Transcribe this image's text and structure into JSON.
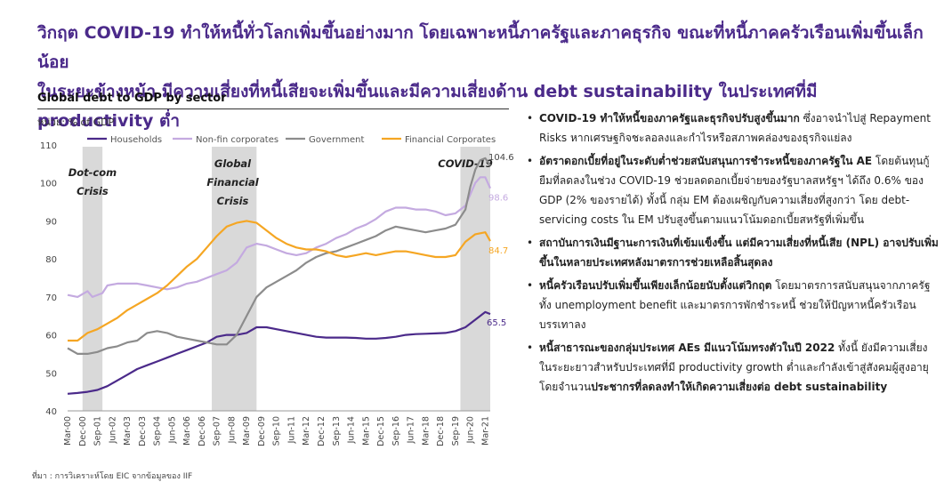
{
  "headline": {
    "line1": "วิกฤต COVID-19 ทำให้หนี้ทั่วโลกเพิ่มขึ้นอย่างมาก โดยเฉพาะหนี้ภาครัฐและภาคธุรกิจ ขณะที่หนี้ภาคครัวเรือนเพิ่มขึ้นเล็กน้อย",
    "line2": "ในระยะข้างหน้า มีความเสี่ยงที่หนี้เสียจะเพิ่มขึ้นและมีความเสี่ยงด้าน debt sustainability ในประเทศที่มี productivity ต่ำ"
  },
  "chart_title": "Global debt to GDP by sector",
  "unit_label": "หน่วย: % of GDP",
  "chart_data": {
    "type": "line",
    "ylim": [
      40,
      110
    ],
    "yticks": [
      40,
      50,
      60,
      70,
      80,
      90,
      100,
      110
    ],
    "xlim": [
      2000.0,
      2021.25
    ],
    "xtick_labels": [
      "Mar-00",
      "Dec-00",
      "Sep-01",
      "Jun-02",
      "Mar-03",
      "Dec-03",
      "Sep-04",
      "Jun-05",
      "Mar-06",
      "Dec-06",
      "Sep-07",
      "Jun-08",
      "Mar-09",
      "Dec-09",
      "Sep-10",
      "Jun-11",
      "Mar-12",
      "Dec-12",
      "Sep-13",
      "Jun-14",
      "Mar-15",
      "Dec-15",
      "Sep-16",
      "Jun-17",
      "Mar-18",
      "Dec-18",
      "Sep-19",
      "Jun-20",
      "Mar-21"
    ],
    "shaded_periods": [
      {
        "label": [
          "Dot-com",
          "Crisis"
        ],
        "start": 2000.75,
        "end": 2001.75
      },
      {
        "label": [
          "Global",
          "Financial",
          "Crisis"
        ],
        "start": 2007.25,
        "end": 2009.5
      },
      {
        "label": [
          "COVID-19"
        ],
        "start": 2019.75,
        "end": 2021.25
      }
    ],
    "grid": false,
    "legend_position": "top",
    "series": [
      {
        "name": "Households",
        "color": "#4b2a8a",
        "end_label": "65.5",
        "points": [
          [
            2000.0,
            44.5
          ],
          [
            2000.5,
            44.7
          ],
          [
            2001.0,
            45.0
          ],
          [
            2001.5,
            45.5
          ],
          [
            2002.0,
            46.5
          ],
          [
            2002.5,
            48.0
          ],
          [
            2003.0,
            49.5
          ],
          [
            2003.5,
            51.0
          ],
          [
            2004.0,
            52.0
          ],
          [
            2004.5,
            53.0
          ],
          [
            2005.0,
            54.0
          ],
          [
            2005.5,
            55.0
          ],
          [
            2006.0,
            56.0
          ],
          [
            2006.5,
            57.0
          ],
          [
            2007.0,
            58.0
          ],
          [
            2007.5,
            59.5
          ],
          [
            2008.0,
            60.0
          ],
          [
            2008.5,
            60.0
          ],
          [
            2009.0,
            60.5
          ],
          [
            2009.5,
            62.0
          ],
          [
            2010.0,
            62.0
          ],
          [
            2010.5,
            61.5
          ],
          [
            2011.0,
            61.0
          ],
          [
            2011.5,
            60.5
          ],
          [
            2012.0,
            60.0
          ],
          [
            2012.5,
            59.5
          ],
          [
            2013.0,
            59.3
          ],
          [
            2013.5,
            59.3
          ],
          [
            2014.0,
            59.3
          ],
          [
            2014.5,
            59.2
          ],
          [
            2015.0,
            59.0
          ],
          [
            2015.5,
            59.0
          ],
          [
            2016.0,
            59.2
          ],
          [
            2016.5,
            59.5
          ],
          [
            2017.0,
            60.0
          ],
          [
            2017.5,
            60.2
          ],
          [
            2018.0,
            60.3
          ],
          [
            2018.5,
            60.4
          ],
          [
            2019.0,
            60.5
          ],
          [
            2019.5,
            61.0
          ],
          [
            2020.0,
            62.0
          ],
          [
            2020.5,
            64.0
          ],
          [
            2021.0,
            66.0
          ],
          [
            2021.25,
            65.5
          ]
        ]
      },
      {
        "name": "Non-fin corporates",
        "color": "#c4aae0",
        "end_label": "98.6",
        "points": [
          [
            2000.0,
            70.5
          ],
          [
            2000.5,
            70.0
          ],
          [
            2001.0,
            71.5
          ],
          [
            2001.25,
            70.0
          ],
          [
            2001.75,
            71.0
          ],
          [
            2002.0,
            73.0
          ],
          [
            2002.5,
            73.5
          ],
          [
            2003.0,
            73.5
          ],
          [
            2003.5,
            73.5
          ],
          [
            2004.0,
            73.0
          ],
          [
            2004.5,
            72.5
          ],
          [
            2005.0,
            72.0
          ],
          [
            2005.5,
            72.5
          ],
          [
            2006.0,
            73.5
          ],
          [
            2006.5,
            74.0
          ],
          [
            2007.0,
            75.0
          ],
          [
            2007.5,
            76.0
          ],
          [
            2008.0,
            77.0
          ],
          [
            2008.5,
            79.0
          ],
          [
            2009.0,
            83.0
          ],
          [
            2009.5,
            84.0
          ],
          [
            2010.0,
            83.5
          ],
          [
            2010.5,
            82.5
          ],
          [
            2011.0,
            81.5
          ],
          [
            2011.5,
            81.0
          ],
          [
            2012.0,
            81.5
          ],
          [
            2012.5,
            83.0
          ],
          [
            2013.0,
            84.0
          ],
          [
            2013.5,
            85.5
          ],
          [
            2014.0,
            86.5
          ],
          [
            2014.5,
            88.0
          ],
          [
            2015.0,
            89.0
          ],
          [
            2015.5,
            90.5
          ],
          [
            2016.0,
            92.5
          ],
          [
            2016.5,
            93.5
          ],
          [
            2017.0,
            93.5
          ],
          [
            2017.5,
            93.0
          ],
          [
            2018.0,
            93.0
          ],
          [
            2018.5,
            92.5
          ],
          [
            2019.0,
            91.5
          ],
          [
            2019.5,
            92.0
          ],
          [
            2020.0,
            94.0
          ],
          [
            2020.5,
            100.0
          ],
          [
            2020.75,
            101.5
          ],
          [
            2021.0,
            101.5
          ],
          [
            2021.25,
            98.6
          ]
        ]
      },
      {
        "name": "Government",
        "color": "#8c8c8c",
        "end_label": "104.6",
        "points": [
          [
            2000.0,
            56.5
          ],
          [
            2000.5,
            55.0
          ],
          [
            2001.0,
            55.0
          ],
          [
            2001.5,
            55.5
          ],
          [
            2002.0,
            56.5
          ],
          [
            2002.5,
            57.0
          ],
          [
            2003.0,
            58.0
          ],
          [
            2003.5,
            58.5
          ],
          [
            2004.0,
            60.5
          ],
          [
            2004.5,
            61.0
          ],
          [
            2005.0,
            60.5
          ],
          [
            2005.5,
            59.5
          ],
          [
            2006.0,
            59.0
          ],
          [
            2006.5,
            58.5
          ],
          [
            2007.0,
            58.0
          ],
          [
            2007.5,
            57.5
          ],
          [
            2008.0,
            57.5
          ],
          [
            2008.5,
            60.0
          ],
          [
            2009.0,
            65.0
          ],
          [
            2009.5,
            70.0
          ],
          [
            2010.0,
            72.5
          ],
          [
            2010.5,
            74.0
          ],
          [
            2011.0,
            75.5
          ],
          [
            2011.5,
            77.0
          ],
          [
            2012.0,
            79.0
          ],
          [
            2012.5,
            80.5
          ],
          [
            2013.0,
            81.5
          ],
          [
            2013.5,
            82.0
          ],
          [
            2014.0,
            83.0
          ],
          [
            2014.5,
            84.0
          ],
          [
            2015.0,
            85.0
          ],
          [
            2015.5,
            86.0
          ],
          [
            2016.0,
            87.5
          ],
          [
            2016.5,
            88.5
          ],
          [
            2017.0,
            88.0
          ],
          [
            2017.5,
            87.5
          ],
          [
            2018.0,
            87.0
          ],
          [
            2018.5,
            87.5
          ],
          [
            2019.0,
            88.0
          ],
          [
            2019.5,
            89.0
          ],
          [
            2020.0,
            93.0
          ],
          [
            2020.25,
            99.0
          ],
          [
            2020.5,
            103.5
          ],
          [
            2020.75,
            106.0
          ],
          [
            2021.0,
            106.5
          ],
          [
            2021.25,
            104.6
          ]
        ]
      },
      {
        "name": "Financial Corporates",
        "color": "#f5a623",
        "end_label": "84.7",
        "points": [
          [
            2000.0,
            58.5
          ],
          [
            2000.5,
            58.5
          ],
          [
            2001.0,
            60.5
          ],
          [
            2001.5,
            61.5
          ],
          [
            2002.0,
            63.0
          ],
          [
            2002.5,
            64.5
          ],
          [
            2003.0,
            66.5
          ],
          [
            2003.5,
            68.0
          ],
          [
            2004.0,
            69.5
          ],
          [
            2004.5,
            71.0
          ],
          [
            2005.0,
            73.0
          ],
          [
            2005.5,
            75.5
          ],
          [
            2006.0,
            78.0
          ],
          [
            2006.5,
            80.0
          ],
          [
            2007.0,
            83.0
          ],
          [
            2007.5,
            86.0
          ],
          [
            2008.0,
            88.5
          ],
          [
            2008.5,
            89.5
          ],
          [
            2009.0,
            90.0
          ],
          [
            2009.5,
            89.5
          ],
          [
            2010.0,
            87.5
          ],
          [
            2010.5,
            85.5
          ],
          [
            2011.0,
            84.0
          ],
          [
            2011.5,
            83.0
          ],
          [
            2012.0,
            82.5
          ],
          [
            2012.5,
            82.5
          ],
          [
            2013.0,
            82.0
          ],
          [
            2013.5,
            81.0
          ],
          [
            2014.0,
            80.5
          ],
          [
            2014.5,
            81.0
          ],
          [
            2015.0,
            81.5
          ],
          [
            2015.5,
            81.0
          ],
          [
            2016.0,
            81.5
          ],
          [
            2016.5,
            82.0
          ],
          [
            2017.0,
            82.0
          ],
          [
            2017.5,
            81.5
          ],
          [
            2018.0,
            81.0
          ],
          [
            2018.5,
            80.5
          ],
          [
            2019.0,
            80.5
          ],
          [
            2019.5,
            81.0
          ],
          [
            2020.0,
            84.5
          ],
          [
            2020.5,
            86.5
          ],
          [
            2021.0,
            87.0
          ],
          [
            2021.25,
            84.7
          ]
        ]
      }
    ]
  },
  "bullets": [
    {
      "bold": "COVID-19 ทำให้หนี้ของภาครัฐและธุรกิจปรับสูงขึ้นมาก",
      "text": " ซึ่งอาจนำไปสู่ Repayment Risks หากเศรษฐกิจชะลอลงและกำไรหรือสภาพคล่องของธุรกิจแย่ลง"
    },
    {
      "bold": "อัตราดอกเบี้ยที่อยู่ในระดับต่ำช่วยสนับสนุนการชำระหนี้ของภาครัฐใน AE",
      "text": " โดยต้นทุนกู้ยืมที่ลดลงในช่วง COVID-19 ช่วยลดดอกเบี้ยจ่ายของรัฐบาลสหรัฐฯ ได้ถึง 0.6% ของ GDP (2% ของรายได้) ทั้งนี้ กลุ่ม EM ต้องเผชิญกับความเสี่ยงที่สูงกว่า โดย debt-servicing costs ใน EM ปรับสูงขึ้นตามแนวโน้มดอกเบี้ยสหรัฐที่เพิ่มขึ้น"
    },
    {
      "bold": "สถาบันการเงินมีฐานะการเงินที่เข้มแข็งขึ้น แต่มีความเสี่ยงที่หนี้เสีย (NPL) อาจปรับเพิ่มขึ้นในหลายประเทศหลังมาตรการช่วยเหลือสิ้นสุดลง",
      "text": ""
    },
    {
      "bold": "หนี้ครัวเรือนปรับเพิ่มขึ้นเพียงเล็กน้อยนับตั้งแต่วิกฤต",
      "text": " โดยมาตรการสนับสนุนจากภาครัฐ ทั้ง unemployment benefit และมาตรการพักชำระหนี้ ช่วยให้ปัญหาหนี้ครัวเรือนบรรเทาลง"
    },
    {
      "bold": "หนี้สาธารณะของกลุ่มประเทศ AEs มีแนวโน้มทรงตัวในปี 2022",
      "text": " ทั้งนี้ ยังมีความเสี่ยงในระยะยาวสำหรับประเทศที่มี productivity growth ต่ำและกำลังเข้าสู่สังคมผู้สูงอายุ โดยจำนวน",
      "bold2": "ประชากรที่ลดลงทำให้เกิดความเสี่ยงต่อ debt sustainability"
    }
  ],
  "source": "ที่มา : การวิเคราะห์โดย EIC จากข้อมูลของ IIF"
}
